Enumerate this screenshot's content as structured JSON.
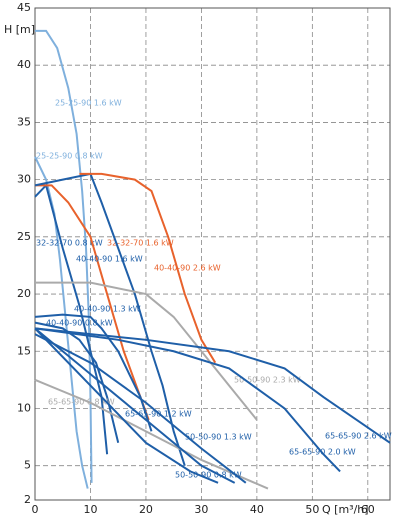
{
  "chart_data": {
    "type": "line",
    "ylabel": "H [m]",
    "xlabel": "Q [m³/h]",
    "xlim": [
      0,
      64
    ],
    "ylim": [
      2,
      45
    ],
    "xticks": [
      0,
      10,
      20,
      30,
      40,
      50,
      60
    ],
    "yticks": [
      2,
      5,
      10,
      15,
      20,
      25,
      30,
      35,
      40,
      45
    ],
    "grid": true,
    "series": [
      {
        "name": "25-25-90 1.6 kW",
        "color": "#7fb0dd",
        "x": [
          0,
          2,
          4,
          6,
          7.5,
          8.5,
          9.2,
          9.7,
          10,
          10.2
        ],
        "values": [
          43,
          43,
          41.5,
          38,
          34,
          29,
          24,
          18,
          11,
          3.5
        ]
      },
      {
        "name": "25-25-90 0.8 kW",
        "color": "#7fb0dd",
        "x": [
          0,
          2,
          3.5,
          4.5,
          5.5,
          6.5,
          7.5,
          8.5,
          9.5
        ],
        "values": [
          32,
          30,
          27,
          23,
          18,
          13,
          8,
          5,
          3
        ]
      },
      {
        "name": "32-32-70 0.8 kW",
        "color": "#1f5fa8",
        "x": [
          0,
          2,
          5,
          8,
          10,
          12,
          13
        ],
        "values": [
          28.5,
          29.5,
          24,
          19,
          15,
          11,
          6
        ]
      },
      {
        "name": "32-32-70 1.6 kW",
        "color": "#e8622c",
        "x": [
          0,
          3,
          6,
          10,
          13,
          16,
          19,
          20.5
        ],
        "values": [
          29.5,
          29.5,
          28,
          25,
          20,
          15,
          11,
          9
        ]
      },
      {
        "name": "40-40-90 1.6 kW",
        "color": "#1f5fa8",
        "x": [
          0,
          5,
          10,
          12,
          15,
          18,
          21,
          23,
          25,
          27
        ],
        "values": [
          29.5,
          30,
          30.5,
          28,
          24,
          20,
          15,
          12,
          8,
          5
        ]
      },
      {
        "name": "40-40-90 2.6 kW",
        "color": "#e8622c",
        "x": [
          8,
          12,
          18,
          21,
          24,
          27,
          30,
          32.5
        ],
        "values": [
          30.5,
          30.5,
          30,
          29,
          25,
          20,
          16,
          14
        ]
      },
      {
        "name": "40-40-90 1.3 kW",
        "color": "#1f5fa8",
        "x": [
          0,
          5,
          10,
          12,
          15,
          17,
          19,
          21
        ],
        "values": [
          18,
          18.2,
          18,
          17,
          15,
          13,
          11,
          8
        ]
      },
      {
        "name": "40-40-90 0.8 kW",
        "color": "#1f5fa8",
        "x": [
          0,
          5,
          8,
          11,
          13,
          15
        ],
        "values": [
          17.5,
          17,
          16,
          14,
          11,
          7
        ]
      },
      {
        "name": "50-50-90 2.3 kW",
        "color": "#aaaaaa",
        "x": [
          0,
          10,
          20,
          25,
          30,
          35,
          40
        ],
        "values": [
          21,
          21,
          20,
          18,
          15,
          12,
          9
        ]
      },
      {
        "name": "65-65-90 0.8 kW",
        "color": "#aaaaaa",
        "x": [
          0,
          10,
          20,
          30,
          42
        ],
        "values": [
          12.5,
          10.5,
          8,
          5.5,
          3
        ]
      },
      {
        "name": "65-65-90 1.2 kW",
        "color": "#1f5fa8",
        "x": [
          0,
          10,
          20,
          30,
          38
        ],
        "values": [
          16.5,
          14,
          10.5,
          6.5,
          3.5
        ]
      },
      {
        "name": "50-50-90 1.3 kW",
        "color": "#1f5fa8",
        "x": [
          0,
          10,
          20,
          30,
          36
        ],
        "values": [
          17,
          13,
          9,
          5,
          3.5
        ]
      },
      {
        "name": "50-50-90 0.8 kW",
        "color": "#1f5fa8",
        "x": [
          0,
          10,
          20,
          28,
          33
        ],
        "values": [
          17,
          12,
          7,
          4.5,
          3.5
        ]
      },
      {
        "name": "65-65-90 2.0 kW",
        "color": "#1f5fa8",
        "x": [
          0,
          15,
          25,
          35,
          45,
          52,
          55
        ],
        "values": [
          17,
          16,
          15,
          13.5,
          10,
          6,
          4.5
        ]
      },
      {
        "name": "65-65-90 2.6 kW",
        "color": "#1f5fa8",
        "x": [
          0,
          20,
          35,
          45,
          52,
          58,
          64
        ],
        "values": [
          17,
          16,
          15,
          13.5,
          11,
          9,
          7
        ]
      }
    ]
  }
}
